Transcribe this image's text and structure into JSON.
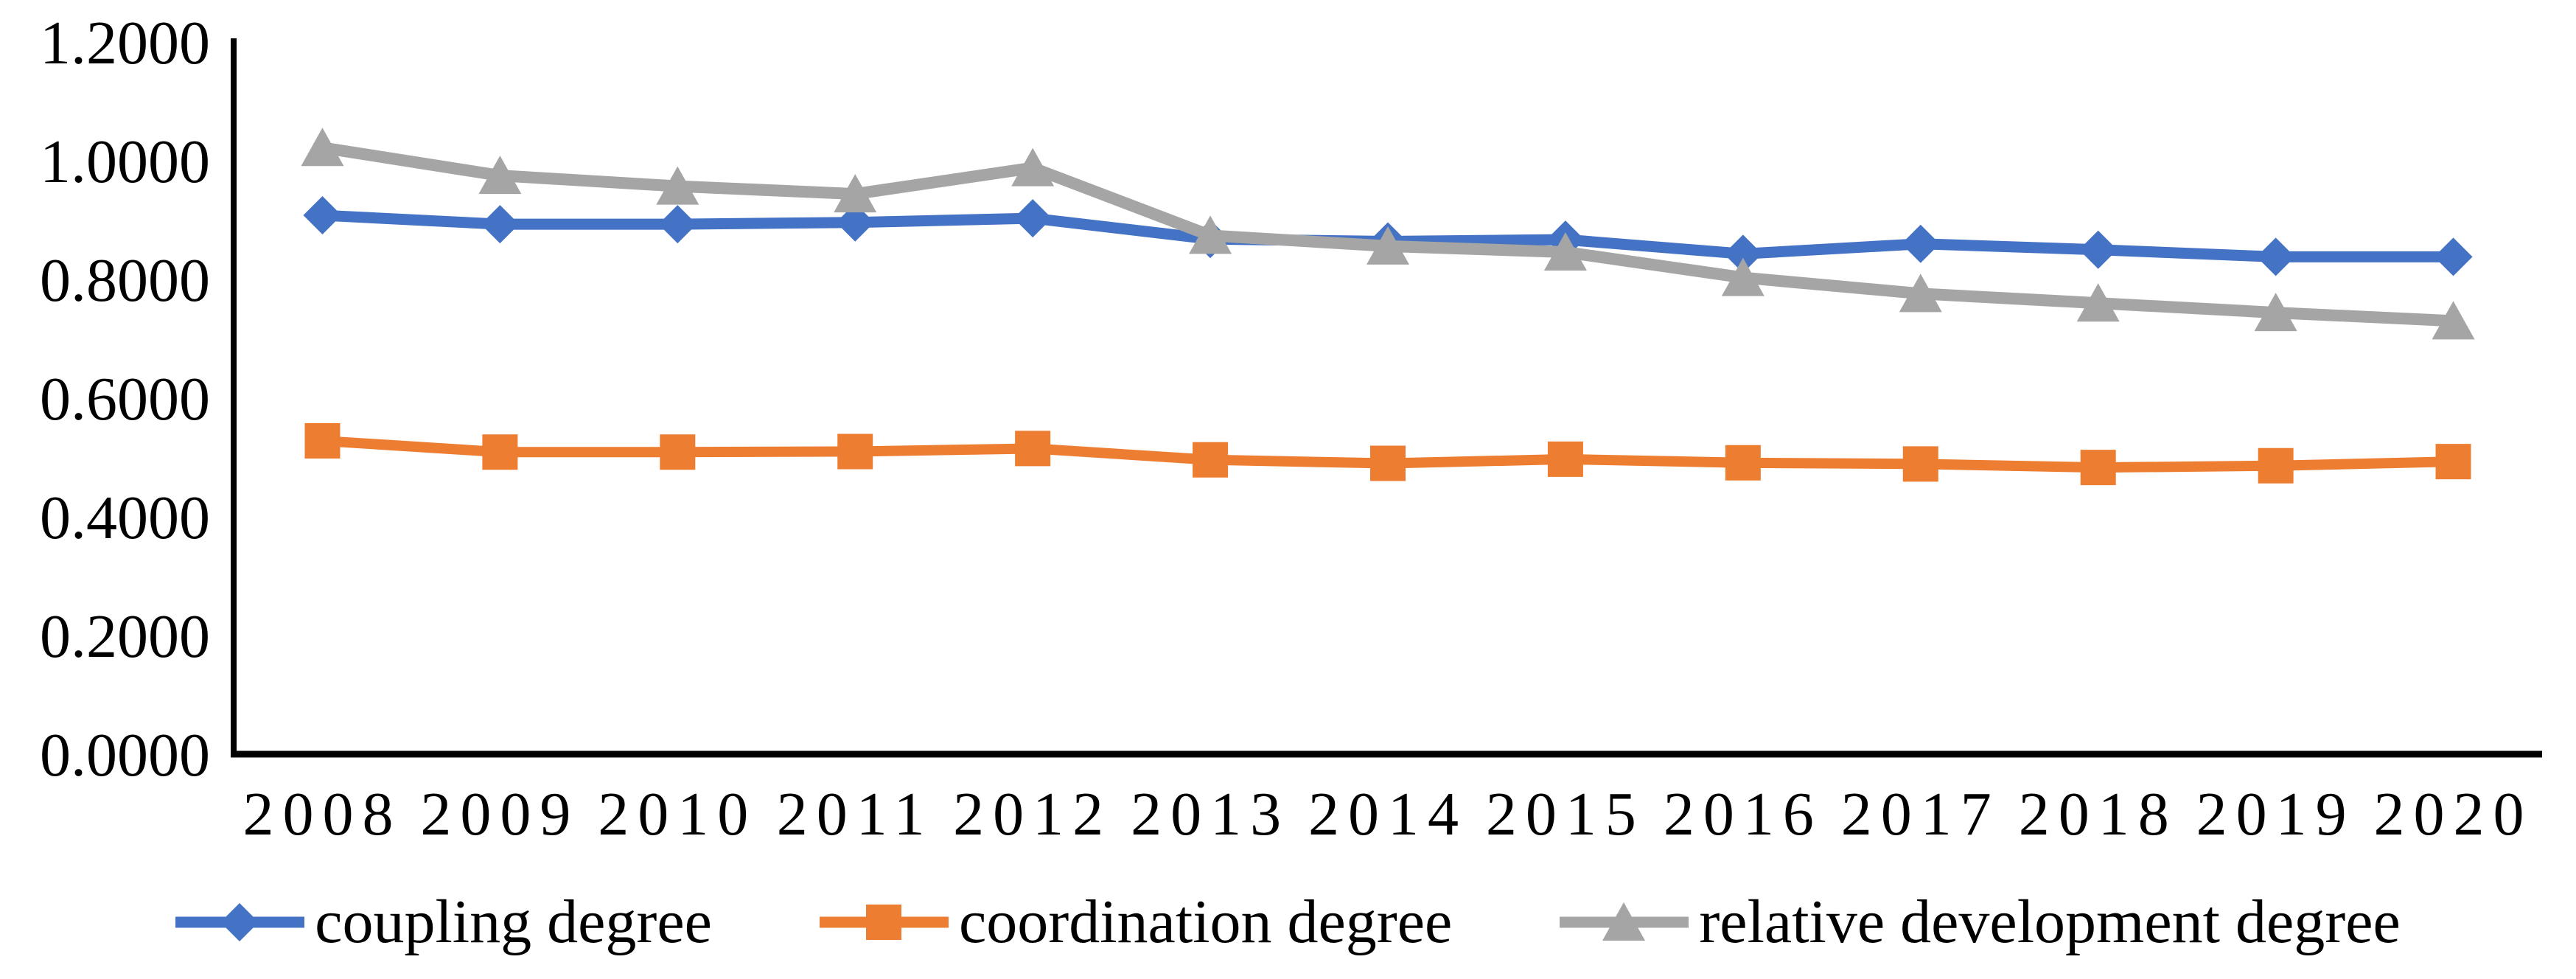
{
  "chart_data": {
    "type": "line",
    "title": "",
    "xlabel": "",
    "ylabel": "",
    "x_labels": [
      "2008",
      "2009",
      "2010",
      "2011",
      "2012",
      "2013",
      "2014",
      "2015",
      "2016",
      "2017",
      "2018",
      "2019",
      "2020"
    ],
    "series": [
      {
        "name": "coupling degree",
        "color": "#4472C4",
        "marker": "diamond",
        "values": [
          0.908,
          0.893,
          0.893,
          0.896,
          0.903,
          0.868,
          0.864,
          0.867,
          0.843,
          0.86,
          0.85,
          0.838,
          0.838
        ]
      },
      {
        "name": "coordination degree",
        "color": "#ED7D31",
        "marker": "square",
        "values": [
          0.528,
          0.509,
          0.509,
          0.51,
          0.515,
          0.496,
          0.49,
          0.497,
          0.491,
          0.489,
          0.483,
          0.486,
          0.493
        ]
      },
      {
        "name": "relative development degree",
        "color": "#A5A5A5",
        "marker": "triangle",
        "values": [
          1.022,
          0.975,
          0.957,
          0.944,
          0.988,
          0.874,
          0.856,
          0.846,
          0.803,
          0.776,
          0.76,
          0.744,
          0.73
        ]
      }
    ],
    "ylim": [
      0.0,
      1.2
    ],
    "yticks": [
      {
        "value": 0.0,
        "label": "0.0000"
      },
      {
        "value": 0.2,
        "label": "0.2000"
      },
      {
        "value": 0.4,
        "label": "0.4000"
      },
      {
        "value": 0.6,
        "label": "0.6000"
      },
      {
        "value": 0.8,
        "label": "0.8000"
      },
      {
        "value": 1.0,
        "label": "1.0000"
      },
      {
        "value": 1.2,
        "label": "1.2000"
      }
    ],
    "grid": false,
    "legend_position": "bottom",
    "axis_color": "#000000",
    "background_color": "#FFFFFF"
  }
}
